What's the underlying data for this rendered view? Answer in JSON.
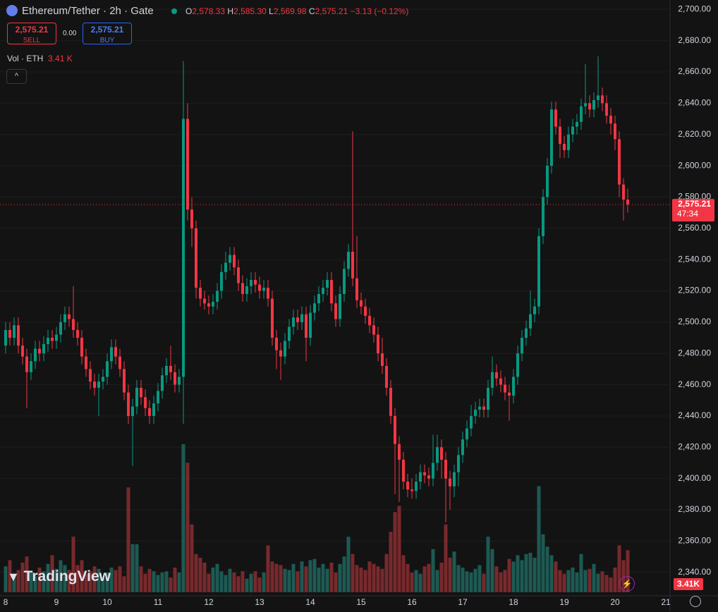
{
  "header": {
    "symbol": "Ethereum/Tether · 2h · Gate",
    "o_label": "O",
    "open": "2,578.33",
    "h_label": "H",
    "high": "2,585.30",
    "l_label": "L",
    "low": "2,569.98",
    "c_label": "C",
    "close": "2,575.21",
    "change": "−3.13 (−0.12%)",
    "sell_price": "2,575.21",
    "sell": "SELL",
    "spread": "0.00",
    "buy_price": "2,575.21",
    "buy": "BUY",
    "volume_title": "Vol · ETH",
    "volume_value": "3.41 K",
    "brand": "TradingView"
  },
  "chart_data": {
    "type": "candlestick",
    "title": "Ethereum/Tether · 2h · Gate",
    "categories": [
      "8",
      null,
      null,
      null,
      null,
      null,
      null,
      null,
      null,
      null,
      null,
      null,
      "9",
      null,
      null,
      null,
      null,
      null,
      null,
      null,
      null,
      null,
      null,
      null,
      "10",
      null,
      null,
      null,
      null,
      null,
      null,
      null,
      null,
      null,
      null,
      null,
      "11",
      null,
      null,
      null,
      null,
      null,
      null,
      null,
      null,
      null,
      null,
      null,
      "12",
      null,
      null,
      null,
      null,
      null,
      null,
      null,
      null,
      null,
      null,
      null,
      "13",
      null,
      null,
      null,
      null,
      null,
      null,
      null,
      null,
      null,
      null,
      null,
      "14",
      null,
      null,
      null,
      null,
      null,
      null,
      null,
      null,
      null,
      null,
      null,
      "15",
      null,
      null,
      null,
      null,
      null,
      null,
      null,
      null,
      null,
      null,
      null,
      "16",
      null,
      null,
      null,
      null,
      null,
      null,
      null,
      null,
      null,
      null,
      null,
      "17",
      null,
      null,
      null,
      null,
      null,
      null,
      null,
      null,
      null,
      null,
      null,
      "18",
      null,
      null,
      null,
      null,
      null,
      null,
      null,
      null,
      null,
      null,
      null,
      "19",
      null,
      null,
      null,
      null,
      null,
      null,
      null,
      null,
      null,
      null,
      null,
      "20",
      null,
      null,
      null,
      null,
      null,
      null,
      null,
      null,
      null,
      null,
      null,
      "21"
    ],
    "open": [
      2485,
      2495,
      2490,
      2498,
      2485,
      2478,
      2468,
      2475,
      2483,
      2480,
      2486,
      2490,
      2488,
      2492,
      2500,
      2505,
      2502,
      2495,
      2490,
      2478,
      2470,
      2462,
      2458,
      2462,
      2465,
      2475,
      2484,
      2478,
      2470,
      2455,
      2440,
      2446,
      2458,
      2452,
      2445,
      2440,
      2448,
      2456,
      2466,
      2472,
      2468,
      2460,
      2465,
      2630,
      2572,
      2560,
      2522,
      2515,
      2512,
      2510,
      2513,
      2520,
      2532,
      2538,
      2543,
      2535,
      2525,
      2518,
      2523,
      2527,
      2524,
      2520,
      2522,
      2515,
      2490,
      2482,
      2478,
      2488,
      2497,
      2503,
      2500,
      2505,
      2490,
      2506,
      2512,
      2518,
      2522,
      2527,
      2512,
      2502,
      2518,
      2534,
      2545,
      2528,
      2514,
      2510,
      2504,
      2498,
      2492,
      2480,
      2472,
      2458,
      2440,
      2422,
      2412,
      2398,
      2393,
      2392,
      2398,
      2404,
      2402,
      2400,
      2410,
      2420,
      2412,
      2400,
      2395,
      2404,
      2415,
      2425,
      2432,
      2440,
      2444,
      2446,
      2444,
      2458,
      2468,
      2464,
      2460,
      2455,
      2453,
      2465,
      2480,
      2490,
      2496,
      2505,
      2510,
      2555,
      2580,
      2600,
      2636,
      2625,
      2614,
      2610,
      2620,
      2625,
      2628,
      2638,
      2640,
      2636,
      2642,
      2645,
      2640,
      2632,
      2627,
      2617,
      2588,
      2578.33,
      null,
      null,
      null,
      null,
      null,
      null,
      null,
      null,
      null
    ],
    "high": [
      2500,
      2500,
      2503,
      2503,
      2490,
      2483,
      2480,
      2488,
      2488,
      2491,
      2495,
      2495,
      2497,
      2505,
      2510,
      2510,
      2523,
      2500,
      2495,
      2483,
      2475,
      2467,
      2467,
      2470,
      2480,
      2489,
      2489,
      2483,
      2475,
      2460,
      2451,
      2463,
      2463,
      2457,
      2450,
      2453,
      2461,
      2471,
      2477,
      2485,
      2473,
      2470,
      2667,
      2640,
      2580,
      2565,
      2527,
      2520,
      2517,
      2518,
      2525,
      2537,
      2545,
      2548,
      2548,
      2540,
      2530,
      2528,
      2532,
      2532,
      2529,
      2527,
      2527,
      2520,
      2495,
      2487,
      2493,
      2502,
      2508,
      2508,
      2510,
      2510,
      2511,
      2517,
      2523,
      2527,
      2532,
      2532,
      2517,
      2523,
      2539,
      2550,
      2622,
      2555,
      2519,
      2515,
      2509,
      2503,
      2497,
      2490,
      2477,
      2463,
      2445,
      2427,
      2417,
      2403,
      2400,
      2403,
      2409,
      2409,
      2407,
      2428,
      2428,
      2425,
      2417,
      2405,
      2409,
      2420,
      2430,
      2437,
      2447,
      2449,
      2451,
      2451,
      2463,
      2478,
      2473,
      2469,
      2465,
      2460,
      2470,
      2485,
      2495,
      2501,
      2520,
      2515,
      2560,
      2585,
      2605,
      2641,
      2641,
      2630,
      2619,
      2625,
      2630,
      2633,
      2643,
      2665,
      2645,
      2647,
      2670,
      2650,
      2645,
      2637,
      2632,
      2622,
      2592,
      2585.3,
      null,
      null,
      null,
      null,
      null,
      null,
      null,
      null,
      null
    ],
    "low": [
      2480,
      2485,
      2485,
      2480,
      2473,
      2445,
      2463,
      2470,
      2475,
      2475,
      2481,
      2483,
      2483,
      2487,
      2495,
      2497,
      2490,
      2485,
      2473,
      2465,
      2457,
      2453,
      2440,
      2457,
      2460,
      2470,
      2473,
      2465,
      2450,
      2435,
      2408,
      2441,
      2447,
      2440,
      2435,
      2435,
      2443,
      2451,
      2461,
      2463,
      2455,
      2455,
      2435,
      2565,
      2548,
      2515,
      2510,
      2508,
      2505,
      2505,
      2508,
      2515,
      2527,
      2533,
      2530,
      2520,
      2513,
      2513,
      2518,
      2519,
      2515,
      2515,
      2510,
      2485,
      2470,
      2463,
      2473,
      2483,
      2492,
      2495,
      2495,
      2475,
      2485,
      2501,
      2507,
      2513,
      2517,
      2507,
      2497,
      2497,
      2513,
      2529,
      2523,
      2509,
      2505,
      2499,
      2493,
      2487,
      2475,
      2467,
      2453,
      2435,
      2390,
      2385,
      2393,
      2388,
      2387,
      2387,
      2393,
      2397,
      2395,
      2395,
      2405,
      2400,
      2372,
      2380,
      2388,
      2395,
      2410,
      2420,
      2427,
      2435,
      2439,
      2439,
      2439,
      2453,
      2459,
      2455,
      2450,
      2437,
      2448,
      2460,
      2475,
      2485,
      2491,
      2500,
      2505,
      2550,
      2575,
      2595,
      2620,
      2605,
      2605,
      2605,
      2615,
      2620,
      2623,
      2633,
      2631,
      2631,
      2637,
      2635,
      2627,
      2620,
      2610,
      2580,
      2565,
      2569.98,
      null,
      null,
      null,
      null,
      null,
      null,
      null,
      null,
      null
    ],
    "close": [
      2495,
      2490,
      2498,
      2485,
      2478,
      2468,
      2475,
      2483,
      2480,
      2486,
      2490,
      2488,
      2492,
      2500,
      2505,
      2502,
      2495,
      2490,
      2478,
      2470,
      2462,
      2458,
      2462,
      2465,
      2475,
      2484,
      2478,
      2470,
      2455,
      2440,
      2446,
      2458,
      2452,
      2445,
      2440,
      2448,
      2456,
      2466,
      2472,
      2468,
      2460,
      2465,
      2630,
      2572,
      2560,
      2522,
      2515,
      2512,
      2510,
      2513,
      2520,
      2532,
      2538,
      2543,
      2535,
      2525,
      2518,
      2523,
      2527,
      2524,
      2520,
      2522,
      2515,
      2490,
      2482,
      2478,
      2488,
      2497,
      2503,
      2500,
      2505,
      2490,
      2506,
      2512,
      2518,
      2522,
      2527,
      2512,
      2502,
      2518,
      2534,
      2545,
      2528,
      2514,
      2510,
      2504,
      2498,
      2492,
      2480,
      2472,
      2458,
      2440,
      2422,
      2412,
      2398,
      2393,
      2392,
      2398,
      2404,
      2402,
      2400,
      2410,
      2420,
      2412,
      2400,
      2395,
      2404,
      2415,
      2425,
      2432,
      2440,
      2444,
      2446,
      2444,
      2458,
      2468,
      2464,
      2460,
      2455,
      2453,
      2465,
      2480,
      2490,
      2496,
      2505,
      2510,
      2555,
      2580,
      2600,
      2636,
      2625,
      2614,
      2610,
      2620,
      2625,
      2628,
      2638,
      2640,
      2636,
      2642,
      2645,
      2640,
      2632,
      2627,
      2617,
      2588,
      2578.33,
      2575.21,
      null,
      null,
      null,
      null,
      null,
      null,
      null,
      null,
      null
    ],
    "volume": [
      2100,
      2600,
      1500,
      1800,
      2400,
      2900,
      1600,
      1300,
      2000,
      1700,
      2300,
      3000,
      1900,
      2600,
      2200,
      1800,
      4500,
      2200,
      2600,
      1500,
      1700,
      2100,
      1900,
      1200,
      1600,
      2000,
      1800,
      2100,
      1300,
      8500,
      3900,
      3900,
      2100,
      1500,
      1900,
      1700,
      1400,
      1600,
      1700,
      1200,
      2000,
      1600,
      12000,
      10500,
      5500,
      3100,
      2800,
      2400,
      1500,
      2000,
      2300,
      1700,
      1400,
      1900,
      1600,
      1300,
      1700,
      1100,
      1500,
      1700,
      1200,
      1600,
      3800,
      2500,
      2300,
      2200,
      1900,
      1800,
      2300,
      1700,
      2500,
      2100,
      2600,
      2700,
      2000,
      2300,
      1900,
      2400,
      1600,
      2300,
      2900,
      4500,
      3100,
      2200,
      2000,
      1800,
      2500,
      2300,
      2100,
      1900,
      3100,
      4900,
      6500,
      7000,
      3000,
      2300,
      1600,
      1800,
      1500,
      2100,
      2300,
      3500,
      1800,
      2400,
      5500,
      2800,
      3300,
      2200,
      2000,
      1700,
      1600,
      1900,
      2200,
      1500,
      4500,
      3500,
      2100,
      1600,
      1800,
      2700,
      2500,
      3000,
      2600,
      3100,
      3200,
      2800,
      8600,
      4700,
      3700,
      3000,
      2500,
      1800,
      1500,
      1800,
      2000,
      1600,
      3100,
      1800,
      1900,
      2300,
      1500,
      1700,
      1400,
      1200,
      2000,
      3800,
      2600,
      3410,
      null,
      null,
      null,
      null,
      null,
      null,
      null,
      null,
      null
    ],
    "ylim": [
      2325,
      2706
    ],
    "yticks": [
      {
        "value": 2340,
        "label": "2,340.00"
      },
      {
        "value": 2360,
        "label": "2,360.00"
      },
      {
        "value": 2380,
        "label": "2,380.00"
      },
      {
        "value": 2400,
        "label": "2,400.00"
      },
      {
        "value": 2420,
        "label": "2,420.00"
      },
      {
        "value": 2440,
        "label": "2,440.00"
      },
      {
        "value": 2460,
        "label": "2,460.00"
      },
      {
        "value": 2480,
        "label": "2,480.00"
      },
      {
        "value": 2500,
        "label": "2,500.00"
      },
      {
        "value": 2520,
        "label": "2,520.00"
      },
      {
        "value": 2540,
        "label": "2,540.00"
      },
      {
        "value": 2560,
        "label": "2,560.00"
      },
      {
        "value": 2580,
        "label": "2,580.00"
      },
      {
        "value": 2600,
        "label": "2,600.00"
      },
      {
        "value": 2620,
        "label": "2,620.00"
      },
      {
        "value": 2640,
        "label": "2,640.00"
      },
      {
        "value": 2660,
        "label": "2,660.00"
      },
      {
        "value": 2680,
        "label": "2,680.00"
      },
      {
        "value": 2700,
        "label": "2,700.00"
      }
    ],
    "volume_ylim": [
      0,
      16000
    ],
    "grid": true,
    "up_color": "#089981",
    "down_color": "#f23645",
    "volume_up_color": "#1d5a53",
    "volume_down_color": "#78292c",
    "last_price": {
      "value": 2575.21,
      "label": "2,575.21"
    },
    "countdown": "47:34",
    "volume_tag": "3.41K"
  }
}
